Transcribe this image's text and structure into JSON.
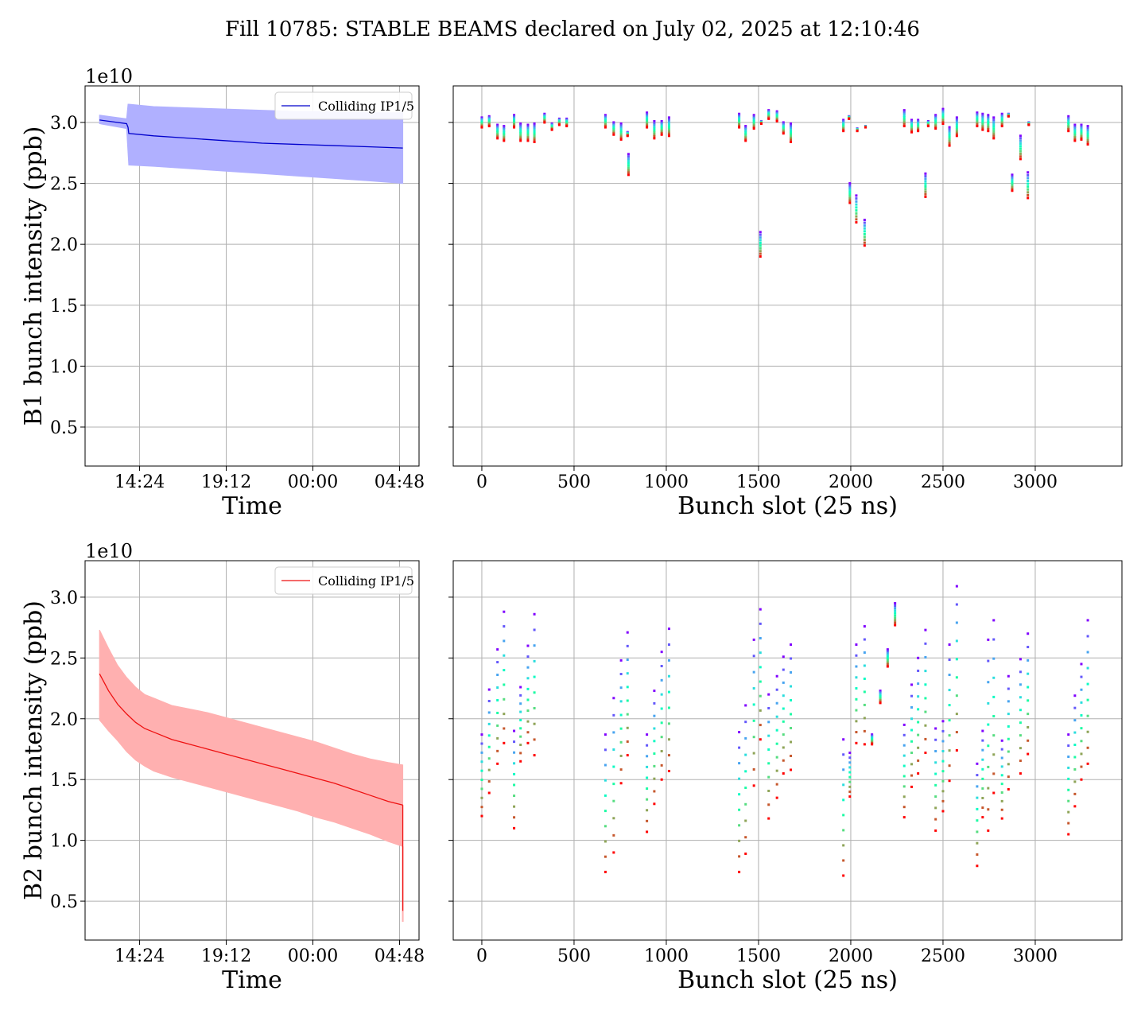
{
  "title": "Fill 10785: STABLE BEAMS declared on July 02, 2025 at 12:10:46",
  "colors": {
    "b1": "#0000cc",
    "b1_band": "#b0b0ff",
    "b2": "#ee1111",
    "b2_band": "#ffb0b0",
    "grid": "#b0b0b0"
  },
  "chart_data": [
    {
      "type": "area",
      "panel": "b1-time",
      "xlabel": "Time",
      "ylabel": "B1 bunch intensity (ppb)",
      "y_offset_label": "1e10",
      "x_ticks": [
        "14:24",
        "19:12",
        "00:00",
        "04:48"
      ],
      "x_tick_hours": [
        2.22,
        7.02,
        11.82,
        16.62
      ],
      "xlim_hours": [
        -0.8,
        17.7
      ],
      "ylim": [
        0.18,
        3.3
      ],
      "y_ticks": [
        0.5,
        1.0,
        1.5,
        2.0,
        2.5,
        3.0
      ],
      "y_tick_labels": [
        "0.5",
        "1.0",
        "1.5",
        "2.0",
        "2.5",
        "3.0"
      ],
      "legend": "Colliding IP1/5",
      "legend_position": "top-right",
      "grid": true,
      "x_hours": [
        0.0,
        1.5,
        1.58,
        1.62,
        3,
        5,
        7,
        9,
        11,
        13,
        15,
        16.8
      ],
      "mean": [
        3.02,
        2.99,
        2.96,
        2.91,
        2.89,
        2.87,
        2.85,
        2.83,
        2.82,
        2.81,
        2.8,
        2.79
      ],
      "upper": [
        3.06,
        3.03,
        3.15,
        3.15,
        3.13,
        3.12,
        3.11,
        3.1,
        3.09,
        3.09,
        3.08,
        3.08
      ],
      "lower": [
        2.99,
        2.95,
        2.75,
        2.65,
        2.64,
        2.62,
        2.6,
        2.58,
        2.56,
        2.54,
        2.52,
        2.5
      ]
    },
    {
      "type": "scatter",
      "panel": "b1-slot",
      "xlabel": "Bunch slot (25 ns)",
      "x_ticks": [
        0,
        500,
        1000,
        1500,
        2000,
        2500,
        3000
      ],
      "x_tick_labels": [
        "0",
        "500",
        "1000",
        "1500",
        "2000",
        "2500",
        "3000"
      ],
      "xlim": [
        -155,
        3470
      ],
      "ylim": [
        0.18,
        3.3
      ],
      "y_ticks": [
        0.5,
        1.0,
        1.5,
        2.0,
        2.5,
        3.0
      ],
      "grid": true,
      "colormap": "rainbow",
      "color_order": "violet first (start) to red last (end)",
      "columns": [
        [
          0,
          3.04,
          2.96
        ],
        [
          40,
          3.05,
          2.97
        ],
        [
          85,
          2.98,
          2.87
        ],
        [
          120,
          2.97,
          2.85
        ],
        [
          175,
          3.06,
          2.96
        ],
        [
          210,
          2.99,
          2.85
        ],
        [
          250,
          2.98,
          2.85
        ],
        [
          285,
          2.99,
          2.84
        ],
        [
          340,
          3.07,
          3.0
        ],
        [
          380,
          2.99,
          2.94
        ],
        [
          420,
          3.03,
          2.98
        ],
        [
          460,
          3.03,
          2.97
        ],
        [
          670,
          3.06,
          2.96
        ],
        [
          715,
          3.0,
          2.9
        ],
        [
          755,
          2.99,
          2.86
        ],
        [
          790,
          2.92,
          2.89
        ],
        [
          795,
          2.74,
          2.57
        ],
        [
          895,
          3.08,
          2.96
        ],
        [
          935,
          3.01,
          2.87
        ],
        [
          975,
          3.01,
          2.9
        ],
        [
          1015,
          3.04,
          2.89
        ],
        [
          1395,
          3.07,
          2.96
        ],
        [
          1430,
          2.97,
          2.85
        ],
        [
          1475,
          3.06,
          2.95
        ],
        [
          1510,
          2.1,
          1.9
        ],
        [
          1515,
          3.01,
          2.99
        ],
        [
          1555,
          3.1,
          3.03
        ],
        [
          1600,
          3.09,
          3.01
        ],
        [
          1635,
          3.0,
          2.91
        ],
        [
          1675,
          2.99,
          2.84
        ],
        [
          1960,
          3.02,
          2.93
        ],
        [
          1990,
          3.05,
          3.03
        ],
        [
          1995,
          2.5,
          2.34
        ],
        [
          2030,
          2.4,
          2.18
        ],
        [
          2035,
          2.95,
          2.93
        ],
        [
          2075,
          2.2,
          1.99
        ],
        [
          2080,
          2.97,
          2.96
        ],
        [
          2290,
          3.1,
          2.97
        ],
        [
          2330,
          3.02,
          2.92
        ],
        [
          2365,
          3.02,
          2.93
        ],
        [
          2405,
          2.58,
          2.39
        ],
        [
          2420,
          3.01,
          2.97
        ],
        [
          2460,
          3.06,
          2.95
        ],
        [
          2500,
          3.11,
          2.99
        ],
        [
          2535,
          2.96,
          2.81
        ],
        [
          2575,
          3.04,
          2.89
        ],
        [
          2685,
          3.08,
          2.97
        ],
        [
          2715,
          3.07,
          2.94
        ],
        [
          2745,
          3.06,
          2.93
        ],
        [
          2775,
          3.04,
          2.87
        ],
        [
          2820,
          3.07,
          2.97
        ],
        [
          2855,
          3.07,
          3.05
        ],
        [
          2875,
          2.57,
          2.44
        ],
        [
          2920,
          2.89,
          2.7
        ],
        [
          2960,
          2.59,
          2.38
        ],
        [
          2965,
          3.0,
          2.98
        ],
        [
          3180,
          3.05,
          2.93
        ],
        [
          3215,
          2.98,
          2.85
        ],
        [
          3250,
          2.98,
          2.86
        ],
        [
          3285,
          2.97,
          2.82
        ]
      ]
    },
    {
      "type": "area",
      "panel": "b2-time",
      "xlabel": "Time",
      "ylabel": "B2 bunch intensity (ppb)",
      "y_offset_label": "1e10",
      "x_ticks": [
        "14:24",
        "19:12",
        "00:00",
        "04:48"
      ],
      "x_tick_hours": [
        2.22,
        7.02,
        11.82,
        16.62
      ],
      "xlim_hours": [
        -0.8,
        17.7
      ],
      "ylim": [
        0.18,
        3.3
      ],
      "y_ticks": [
        0.5,
        1.0,
        1.5,
        2.0,
        2.5,
        3.0
      ],
      "y_tick_labels": [
        "0.5",
        "1.0",
        "1.5",
        "2.0",
        "2.5",
        "3.0"
      ],
      "legend": "Colliding IP1/5",
      "legend_position": "top-right",
      "grid": true,
      "x_hours": [
        0.0,
        0.5,
        1,
        1.5,
        2,
        2.5,
        3,
        4,
        5,
        6,
        7,
        8,
        9,
        10,
        11,
        12,
        13,
        14,
        15,
        16,
        16.8
      ],
      "mean": [
        2.37,
        2.23,
        2.12,
        2.04,
        1.97,
        1.92,
        1.89,
        1.83,
        1.79,
        1.75,
        1.71,
        1.67,
        1.63,
        1.59,
        1.55,
        1.51,
        1.47,
        1.42,
        1.37,
        1.32,
        1.29
      ],
      "upper": [
        2.73,
        2.58,
        2.44,
        2.34,
        2.26,
        2.2,
        2.17,
        2.11,
        2.08,
        2.05,
        2.01,
        1.97,
        1.93,
        1.89,
        1.85,
        1.81,
        1.76,
        1.71,
        1.67,
        1.64,
        1.62
      ],
      "lower": [
        1.99,
        1.9,
        1.82,
        1.73,
        1.66,
        1.61,
        1.57,
        1.52,
        1.48,
        1.44,
        1.4,
        1.36,
        1.32,
        1.28,
        1.24,
        1.19,
        1.15,
        1.1,
        1.05,
        0.99,
        0.95
      ],
      "end_drop": [
        [
          16.8,
          1.29
        ],
        [
          16.8,
          0.42
        ]
      ],
      "end_drop_band": [
        [
          16.8,
          0.95
        ],
        [
          16.8,
          0.33
        ]
      ]
    },
    {
      "type": "scatter",
      "panel": "b2-slot",
      "xlabel": "Bunch slot (25 ns)",
      "x_ticks": [
        0,
        500,
        1000,
        1500,
        2000,
        2500,
        3000
      ],
      "x_tick_labels": [
        "0",
        "500",
        "1000",
        "1500",
        "2000",
        "2500",
        "3000"
      ],
      "xlim": [
        -155,
        3470
      ],
      "ylim": [
        0.18,
        3.3
      ],
      "y_ticks": [
        0.5,
        1.0,
        1.5,
        2.0,
        2.5,
        3.0
      ],
      "grid": true,
      "colormap": "rainbow",
      "color_order": "violet first (start) to red last (end)",
      "columns": [
        [
          0,
          1.87,
          1.2
        ],
        [
          40,
          2.24,
          1.39
        ],
        [
          85,
          2.57,
          1.63
        ],
        [
          120,
          2.88,
          1.8
        ],
        [
          175,
          1.9,
          1.1
        ],
        [
          210,
          2.26,
          1.65
        ],
        [
          250,
          2.6,
          1.8
        ],
        [
          285,
          2.86,
          1.7
        ],
        [
          670,
          1.87,
          0.74
        ],
        [
          715,
          2.17,
          0.9
        ],
        [
          755,
          2.48,
          1.47
        ],
        [
          790,
          2.71,
          1.7
        ],
        [
          895,
          1.87,
          1.07
        ],
        [
          935,
          2.23,
          1.3
        ],
        [
          975,
          2.55,
          1.5
        ],
        [
          1015,
          2.74,
          1.57
        ],
        [
          1395,
          1.89,
          0.74
        ],
        [
          1430,
          2.11,
          0.89
        ],
        [
          1475,
          2.65,
          1.45
        ],
        [
          1510,
          2.9,
          1.83
        ],
        [
          1555,
          2.2,
          1.18
        ],
        [
          1600,
          2.35,
          1.35
        ],
        [
          1635,
          2.51,
          1.55
        ],
        [
          1675,
          2.61,
          1.58
        ],
        [
          1960,
          1.83,
          0.71
        ],
        [
          1995,
          1.72,
          1.36
        ],
        [
          2030,
          2.61,
          1.8
        ],
        [
          2075,
          2.76,
          1.79
        ],
        [
          2115,
          1.87,
          1.79
        ],
        [
          2160,
          2.23,
          2.13
        ],
        [
          2200,
          2.57,
          2.43
        ],
        [
          2240,
          2.95,
          2.77
        ],
        [
          2290,
          1.95,
          1.19
        ],
        [
          2330,
          2.28,
          1.44
        ],
        [
          2365,
          2.5,
          1.55
        ],
        [
          2405,
          2.73,
          1.72
        ],
        [
          2460,
          1.92,
          1.08
        ],
        [
          2500,
          1.98,
          1.24
        ],
        [
          2535,
          2.61,
          1.49
        ],
        [
          2575,
          3.09,
          1.74
        ],
        [
          2685,
          1.63,
          0.79
        ],
        [
          2715,
          1.9,
          1.19
        ],
        [
          2745,
          2.65,
          1.08
        ],
        [
          2775,
          2.81,
          1.39
        ],
        [
          2820,
          1.82,
          1.18
        ],
        [
          2855,
          2.35,
          1.42
        ],
        [
          2920,
          2.49,
          1.55
        ],
        [
          2960,
          2.7,
          1.71
        ],
        [
          3180,
          1.87,
          1.05
        ],
        [
          3215,
          2.19,
          1.28
        ],
        [
          3250,
          2.45,
          1.5
        ],
        [
          3285,
          2.81,
          1.63
        ]
      ]
    }
  ]
}
